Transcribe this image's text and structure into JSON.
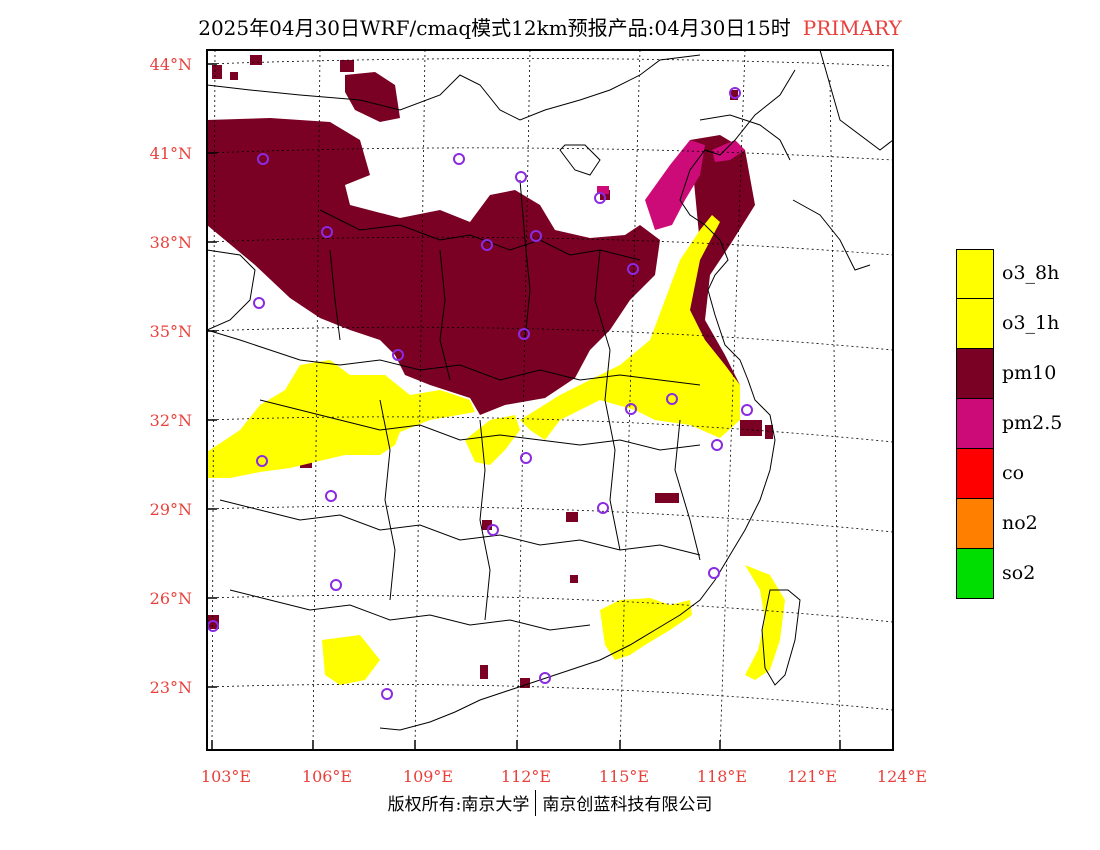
{
  "title": {
    "main": "2025年04月30日WRF/cmaq模式12km预报产品:04月30日15时",
    "mode": "PRIMARY"
  },
  "axes": {
    "lat_labels": [
      "44°N",
      "41°N",
      "38°N",
      "35°N",
      "32°N",
      "29°N",
      "26°N",
      "23°N"
    ],
    "lon_labels": [
      "103°E",
      "106°E",
      "109°E",
      "112°E",
      "115°E",
      "118°E",
      "121°E",
      "124°E"
    ]
  },
  "legend": [
    {
      "label": "o3_8h",
      "color": "#ffff00"
    },
    {
      "label": "o3_1h",
      "color": "#ffff00"
    },
    {
      "label": "pm10",
      "color": "#7a0024"
    },
    {
      "label": "pm2.5",
      "color": "#cc0a78"
    },
    {
      "label": "co",
      "color": "#ff0000"
    },
    {
      "label": "no2",
      "color": "#ff7f00"
    },
    {
      "label": "so2",
      "color": "#00dd00"
    }
  ],
  "footer": {
    "left": "版权所有:南京大学",
    "right": "南京创蓝科技有限公司"
  },
  "colors": {
    "pm10": "#7a0024",
    "pm25": "#cc0a78",
    "o3": "#ffff00",
    "station": "#8a2be2",
    "axis_label": "#e8413c"
  }
}
